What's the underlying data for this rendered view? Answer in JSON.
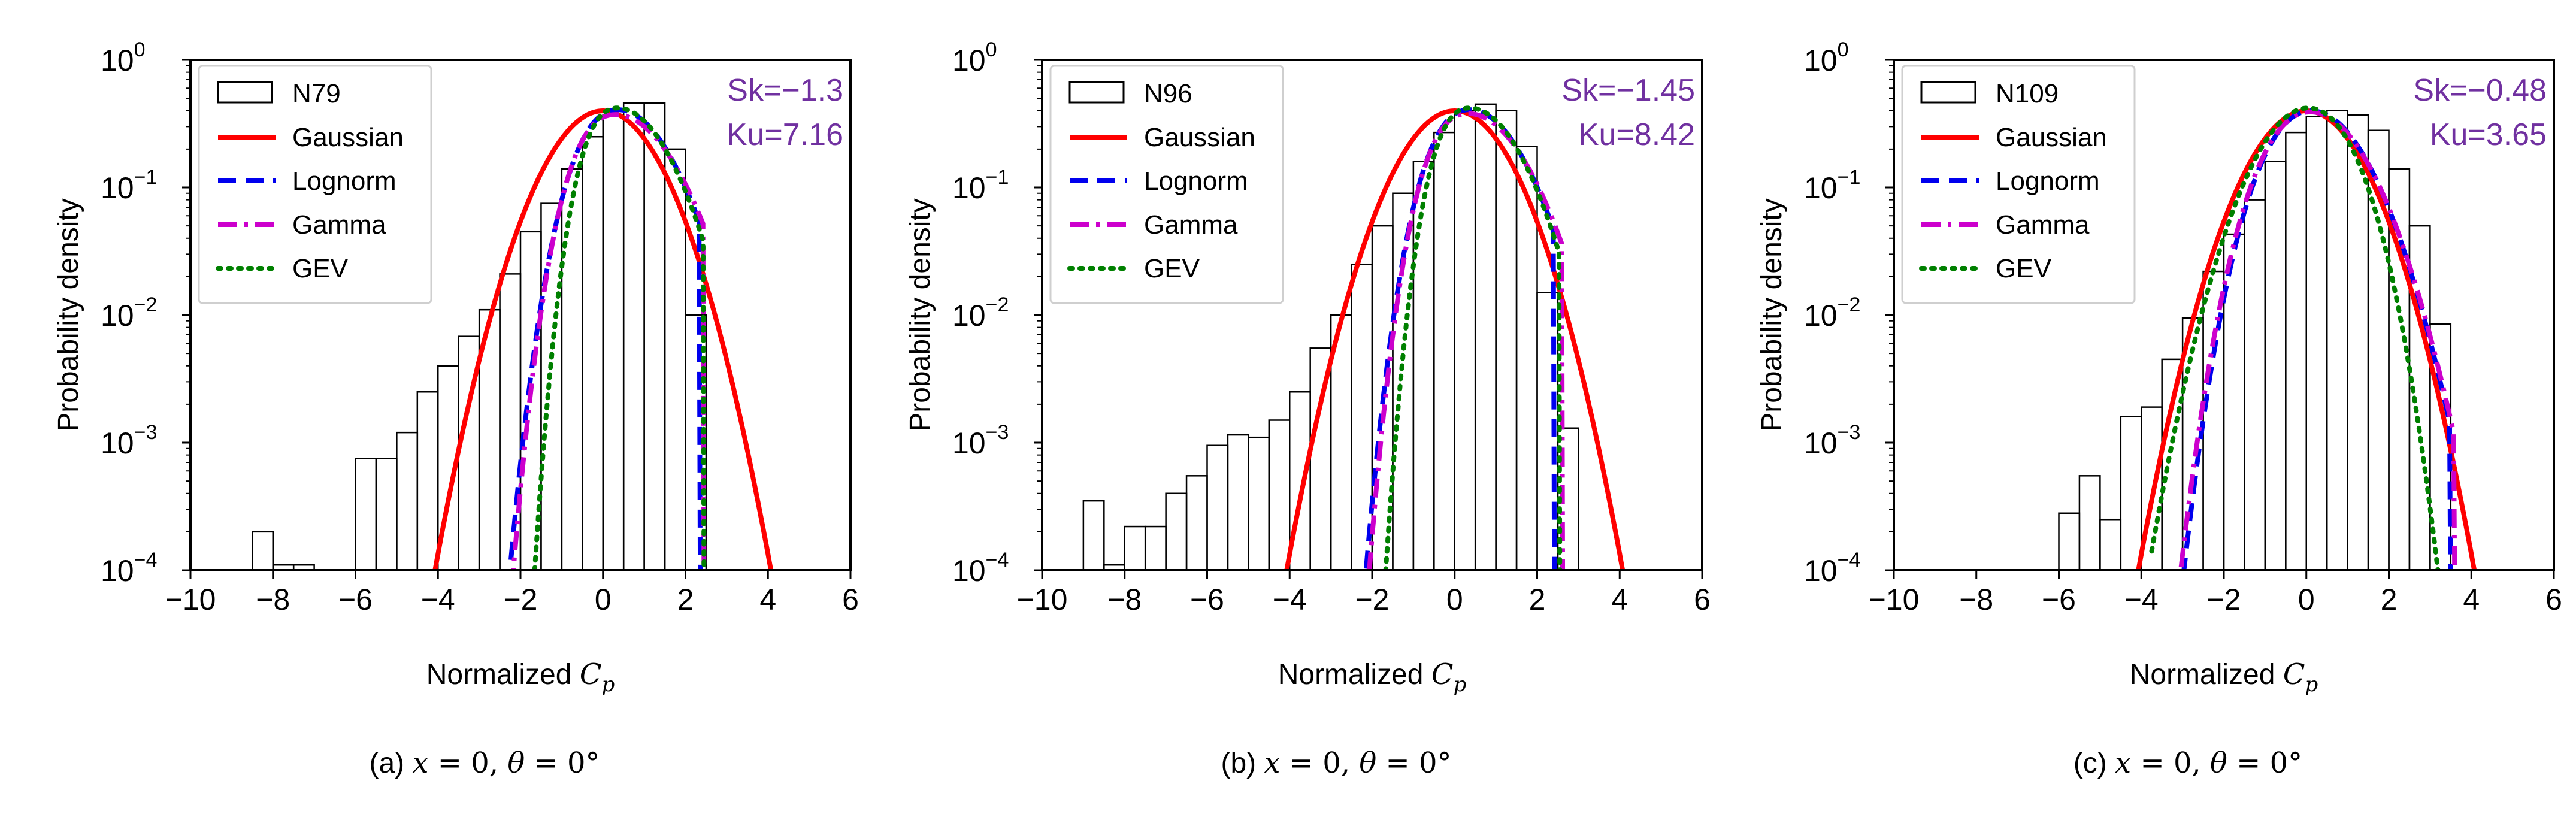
{
  "colors": {
    "gaussian": "#ff0000",
    "lognorm": "#0000ee",
    "gamma": "#cc00cc",
    "gev": "#008000",
    "stats": "#7030a0",
    "bars": "#000000"
  },
  "chart_data": [
    {
      "type": "histogram+line",
      "yscale": "log",
      "xlim": [
        -10,
        6
      ],
      "ylim": [
        0.0001,
        1
      ],
      "xticks": [
        "−10",
        "−8",
        "−6",
        "−4",
        "−2",
        "0",
        "2",
        "4",
        "6"
      ],
      "yticks_base": "10",
      "yticks_exp": [
        "0",
        "−1",
        "−2",
        "−3",
        "−4"
      ],
      "ylabel": "Probability density",
      "xlabel_prefix": "Normalized ",
      "xlabel_var": "C",
      "xlabel_sub": "p",
      "legend": [
        "N79",
        "Gaussian",
        "Lognorm",
        "Gamma",
        "GEV"
      ],
      "stats": {
        "sk": "Sk=−1.3",
        "ku": "Ku=7.16"
      },
      "caption": {
        "label": "(a) ",
        "x": "x",
        "eq1": " = 0, ",
        "theta": "θ",
        "eq2": " = 0°"
      },
      "histogram": {
        "bin_width": 0.5,
        "bins": [
          [
            -8.5,
            0.0002
          ],
          [
            -8.0,
            0.00011
          ],
          [
            -7.5,
            0.00011
          ],
          [
            -6.0,
            0.00075
          ],
          [
            -5.5,
            0.00075
          ],
          [
            -5.0,
            0.0012
          ],
          [
            -4.5,
            0.0025
          ],
          [
            -4.0,
            0.004
          ],
          [
            -3.5,
            0.0068
          ],
          [
            -3.0,
            0.011
          ],
          [
            -2.5,
            0.021
          ],
          [
            -2.0,
            0.045
          ],
          [
            -1.5,
            0.075
          ],
          [
            -1.0,
            0.14
          ],
          [
            -0.5,
            0.25
          ],
          [
            0.0,
            0.37
          ],
          [
            0.5,
            0.46
          ],
          [
            1.0,
            0.46
          ],
          [
            1.5,
            0.2
          ],
          [
            2.0,
            0.01
          ]
        ]
      },
      "gaussian": {
        "mu": 0,
        "sigma": 1
      },
      "lognorm": {
        "mu": 0.36,
        "sigma": 0.98,
        "s": -0.25,
        "xmin": -6.55,
        "xmax": 2.36
      },
      "gamma": {
        "mu": 0.3,
        "sigma": 1.07,
        "s": -0.45,
        "xmin": -5.4,
        "xmax": 2.45
      },
      "gev": {
        "mu": 0.35,
        "sigma": 0.95,
        "s": -0.65,
        "xmin": -4.3,
        "xmax": 2.45
      }
    },
    {
      "type": "histogram+line",
      "yscale": "log",
      "xlim": [
        -10,
        6
      ],
      "ylim": [
        0.0001,
        1
      ],
      "xticks": [
        "−10",
        "−8",
        "−6",
        "−4",
        "−2",
        "0",
        "2",
        "4",
        "6"
      ],
      "yticks_base": "10",
      "yticks_exp": [
        "0",
        "−1",
        "−2",
        "−3",
        "−4"
      ],
      "ylabel": "Probability density",
      "xlabel_prefix": "Normalized ",
      "xlabel_var": "C",
      "xlabel_sub": "p",
      "legend": [
        "N96",
        "Gaussian",
        "Lognorm",
        "Gamma",
        "GEV"
      ],
      "stats": {
        "sk": "Sk=−1.45",
        "ku": "Ku=8.42"
      },
      "caption": {
        "label": "(b) ",
        "x": "x",
        "eq1": " = 0, ",
        "theta": "θ",
        "eq2": " = 0°"
      },
      "histogram": {
        "bin_width": 0.5,
        "bins": [
          [
            -9.0,
            0.00035
          ],
          [
            -8.5,
            0.00011
          ],
          [
            -8.0,
            0.00022
          ],
          [
            -7.5,
            0.00022
          ],
          [
            -7.0,
            0.0004
          ],
          [
            -6.5,
            0.00055
          ],
          [
            -6.0,
            0.00095
          ],
          [
            -5.5,
            0.00115
          ],
          [
            -5.0,
            0.0011
          ],
          [
            -4.5,
            0.0015
          ],
          [
            -4.0,
            0.0025
          ],
          [
            -3.5,
            0.0055
          ],
          [
            -3.0,
            0.01
          ],
          [
            -2.5,
            0.025
          ],
          [
            -2.0,
            0.05
          ],
          [
            -1.5,
            0.09
          ],
          [
            -1.0,
            0.16
          ],
          [
            -0.5,
            0.27
          ],
          [
            0.0,
            0.4
          ],
          [
            0.5,
            0.45
          ],
          [
            1.0,
            0.4
          ],
          [
            1.5,
            0.21
          ],
          [
            2.0,
            0.015
          ],
          [
            2.5,
            0.0013
          ]
        ]
      },
      "gaussian": {
        "mu": 0,
        "sigma": 1
      },
      "lognorm": {
        "mu": 0.36,
        "sigma": 0.98,
        "s": -0.3,
        "xmin": -6.0,
        "xmax": 2.42
      },
      "gamma": {
        "mu": 0.32,
        "sigma": 1.05,
        "s": -0.48,
        "xmin": -4.9,
        "xmax": 2.62
      },
      "gev": {
        "mu": 0.36,
        "sigma": 0.95,
        "s": -0.62,
        "xmin": -4.1,
        "xmax": 2.55
      }
    },
    {
      "type": "histogram+line",
      "yscale": "log",
      "xlim": [
        -10,
        6
      ],
      "ylim": [
        0.0001,
        1
      ],
      "xticks": [
        "−10",
        "−8",
        "−6",
        "−4",
        "−2",
        "0",
        "2",
        "4",
        "6"
      ],
      "yticks_base": "10",
      "yticks_exp": [
        "0",
        "−1",
        "−2",
        "−3",
        "−4"
      ],
      "ylabel": "Probability density",
      "xlabel_prefix": "Normalized ",
      "xlabel_var": "C",
      "xlabel_sub": "p",
      "legend": [
        "N109",
        "Gaussian",
        "Lognorm",
        "Gamma",
        "GEV"
      ],
      "stats": {
        "sk": "Sk=−0.48",
        "ku": "Ku=3.65"
      },
      "caption": {
        "label": "(c) ",
        "x": "x",
        "eq1": " = 0, ",
        "theta": "θ",
        "eq2": " = 0°"
      },
      "histogram": {
        "bin_width": 0.5,
        "bins": [
          [
            -6.0,
            0.00028
          ],
          [
            -5.5,
            0.00055
          ],
          [
            -5.0,
            0.00025
          ],
          [
            -4.5,
            0.0016
          ],
          [
            -4.0,
            0.0019
          ],
          [
            -3.5,
            0.0045
          ],
          [
            -3.0,
            0.0095
          ],
          [
            -2.5,
            0.022
          ],
          [
            -2.0,
            0.043
          ],
          [
            -1.5,
            0.08
          ],
          [
            -1.0,
            0.16
          ],
          [
            -0.5,
            0.27
          ],
          [
            0.0,
            0.36
          ],
          [
            0.5,
            0.4
          ],
          [
            1.0,
            0.37
          ],
          [
            1.5,
            0.28
          ],
          [
            2.0,
            0.14
          ],
          [
            2.5,
            0.05
          ],
          [
            3.0,
            0.0085
          ]
        ]
      },
      "gaussian": {
        "mu": 0,
        "sigma": 1
      },
      "lognorm": {
        "mu": 0.12,
        "sigma": 1.0,
        "s": -0.12,
        "xmin": -5.0,
        "xmax": 3.5
      },
      "gamma": {
        "mu": 0.1,
        "sigma": 1.02,
        "s": -0.12,
        "xmin": -4.9,
        "xmax": 3.6
      },
      "gev": {
        "mu": 0.05,
        "sigma": 0.95,
        "s": 0.08,
        "xmin": -3.75,
        "xmax": 3.5
      }
    }
  ]
}
